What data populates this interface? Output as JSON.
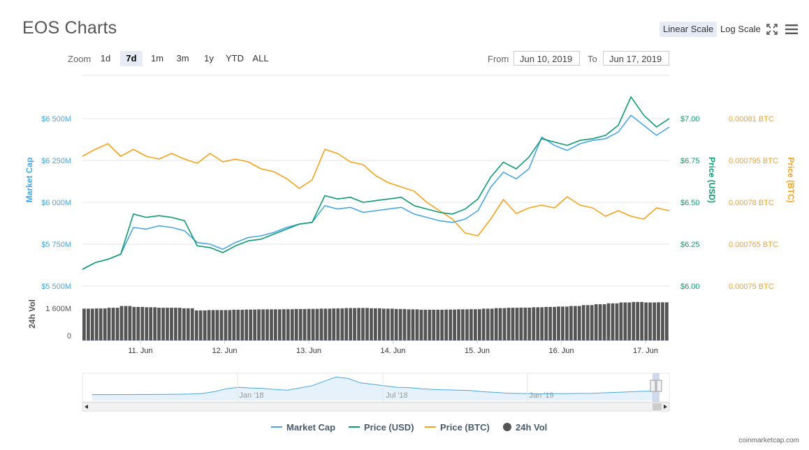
{
  "header": {
    "title": "EOS Charts",
    "linear_scale_label": "Linear Scale",
    "log_scale_label": "Log Scale",
    "fullscreen_icon": "fullscreen-icon",
    "menu_icon": "hamburger-menu-icon"
  },
  "toolbar": {
    "zoom_label": "Zoom",
    "zoom_buttons": [
      {
        "label": "1d",
        "active": false
      },
      {
        "label": "7d",
        "active": true
      },
      {
        "label": "1m",
        "active": false
      },
      {
        "label": "3m",
        "active": false
      },
      {
        "label": "1y",
        "active": false
      },
      {
        "label": "YTD",
        "active": false
      },
      {
        "label": "ALL",
        "active": false
      }
    ],
    "from_label": "From",
    "from_value": "Jun 10, 2019",
    "to_label": "To",
    "to_value": "Jun 17, 2019"
  },
  "colors": {
    "market_cap": "#48a7e2",
    "price_usd": "#0e9a72",
    "price_btc": "#f7a21a",
    "volume": "#555555",
    "grid": "#e6e6e6",
    "navigator_fill": "#e5f1fb"
  },
  "chart_data": {
    "type": "line",
    "x_tick_labels": [
      "11. Jun",
      "12. Jun",
      "13. Jun",
      "14. Jun",
      "15. Jun",
      "16. Jun",
      "17. Jun"
    ],
    "x_range": [
      "Jun 10, 2019",
      "Jun 17, 2019"
    ],
    "axes": {
      "market_cap": {
        "label": "Market Cap",
        "ticks": [
          "$5 500M",
          "$5 750M",
          "$6 000M",
          "$6 250M",
          "$6 500M"
        ],
        "ylim": [
          5500,
          6500
        ],
        "unit": "M USD"
      },
      "price_usd": {
        "label": "Price (USD)",
        "ticks": [
          "$6.00",
          "$6.25",
          "$6.50",
          "$6.75",
          "$7.00"
        ],
        "ylim": [
          6.0,
          7.0
        ]
      },
      "price_btc": {
        "label": "Price (BTC)",
        "ticks": [
          "0.00075 BTC",
          "0.000765 BTC",
          "0.00078 BTC",
          "0.000795 BTC",
          "0.00081 BTC"
        ],
        "ylim": [
          0.00075,
          0.00081
        ]
      },
      "volume": {
        "label": "24h Vol",
        "ticks": [
          "0",
          "1 600M"
        ],
        "ylim": [
          0,
          3000
        ]
      }
    },
    "series": [
      {
        "name": "Market Cap",
        "values": [
          5600,
          5640,
          5660,
          5690,
          5850,
          5840,
          5860,
          5850,
          5830,
          5760,
          5750,
          5720,
          5760,
          5790,
          5800,
          5820,
          5850,
          5870,
          5880,
          5980,
          5960,
          5970,
          5940,
          5950,
          5960,
          5970,
          5930,
          5910,
          5890,
          5880,
          5900,
          5950,
          6090,
          6180,
          6140,
          6200,
          6390,
          6340,
          6310,
          6350,
          6370,
          6380,
          6420,
          6520,
          6460,
          6400,
          6450
        ]
      },
      {
        "name": "Price (USD)",
        "values": [
          6.1,
          6.14,
          6.16,
          6.19,
          6.43,
          6.41,
          6.42,
          6.41,
          6.39,
          6.24,
          6.23,
          6.2,
          6.24,
          6.27,
          6.28,
          6.31,
          6.34,
          6.37,
          6.38,
          6.54,
          6.52,
          6.53,
          6.5,
          6.51,
          6.52,
          6.53,
          6.48,
          6.46,
          6.44,
          6.43,
          6.46,
          6.52,
          6.65,
          6.74,
          6.7,
          6.77,
          6.88,
          6.86,
          6.84,
          6.87,
          6.88,
          6.9,
          6.96,
          7.13,
          7.02,
          6.95,
          7.0
        ]
      },
      {
        "name": "Price (BTC)",
        "values": [
          0.0007965,
          0.000799,
          0.000801,
          0.0007965,
          0.000799,
          0.0007965,
          0.0007955,
          0.0007975,
          0.0007955,
          0.000794,
          0.0007975,
          0.0007945,
          0.0007955,
          0.0007945,
          0.000792,
          0.000791,
          0.0007885,
          0.000785,
          0.000788,
          0.000799,
          0.0007975,
          0.0007945,
          0.0007935,
          0.0007895,
          0.000787,
          0.0007855,
          0.000784,
          0.00078,
          0.000777,
          0.000774,
          0.000769,
          0.000768,
          0.000774,
          0.000781,
          0.000776,
          0.000778,
          0.000779,
          0.000778,
          0.000782,
          0.000779,
          0.000778,
          0.000775,
          0.000777,
          0.000775,
          0.000774,
          0.000778,
          0.000777
        ]
      },
      {
        "name": "24h Vol",
        "values": [
          1800,
          1810,
          1850,
          1950,
          1900,
          1880,
          1850,
          1850,
          1820,
          1700,
          1720,
          1720,
          1740,
          1750,
          1760,
          1760,
          1770,
          1780,
          1790,
          1800,
          1810,
          1830,
          1840,
          1820,
          1800,
          1780,
          1760,
          1740,
          1740,
          1750,
          1760,
          1770,
          1800,
          1830,
          1850,
          1860,
          1880,
          1900,
          1920,
          1950,
          2000,
          2050,
          2100,
          2150,
          2180,
          2150,
          2160
        ]
      }
    ],
    "legend": [
      "Market Cap",
      "Price (USD)",
      "Price (BTC)",
      "24h Vol"
    ],
    "legend_placement": "bottom-center",
    "navigator": {
      "labels": [
        "Jan '18",
        "Jul '18",
        "Jan '19"
      ],
      "values": [
        80,
        80,
        80,
        81,
        82,
        82,
        83,
        85,
        88,
        95,
        120,
        160,
        180,
        170,
        165,
        150,
        140,
        170,
        200,
        260,
        320,
        300,
        240,
        220,
        200,
        180,
        175,
        160,
        150,
        145,
        140,
        135,
        120,
        110,
        100,
        95,
        92,
        90,
        92,
        94,
        96,
        98,
        105,
        110,
        118,
        125,
        130
      ]
    }
  },
  "credit": "coinmarketcap.com"
}
